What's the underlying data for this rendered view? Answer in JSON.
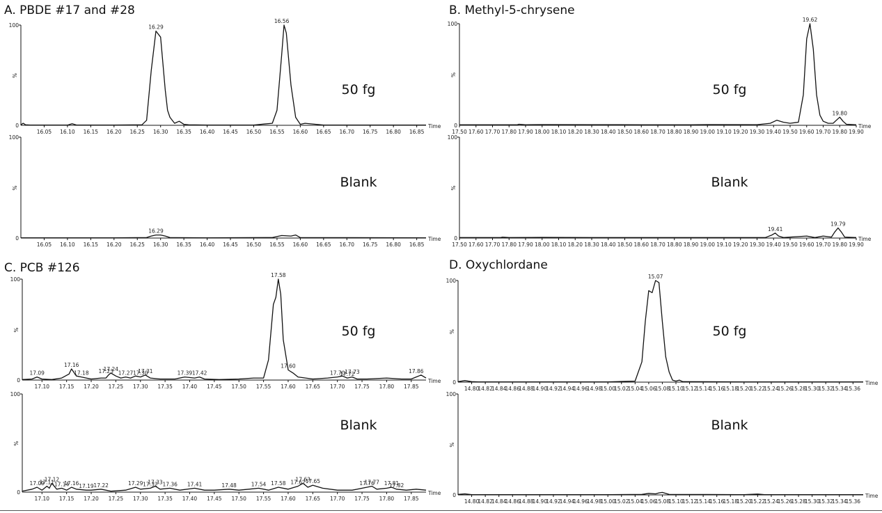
{
  "colors": {
    "trace": "#111111",
    "background": "#ffffff"
  },
  "chart_data": [
    {
      "type": "line",
      "panel_title": "A.  PBDE #17 and #28",
      "xlim": [
        16.0,
        16.87
      ],
      "ylim": [
        0,
        100
      ],
      "y_tick_labels": [
        "100",
        "%",
        "0"
      ],
      "x_tick_values": [
        16.05,
        16.1,
        16.15,
        16.2,
        16.25,
        16.3,
        16.35,
        16.4,
        16.45,
        16.5,
        16.55,
        16.6,
        16.65,
        16.7,
        16.75,
        16.8,
        16.85
      ],
      "x_tick_labels": [
        "16.05",
        "16.10",
        "16.15",
        "16.20",
        "16.25",
        "16.30",
        "16.35",
        "16.40",
        "16.45",
        "16.50",
        "16.55",
        "16.60",
        "16.65",
        "16.70",
        "16.75",
        "16.80",
        "16.85"
      ],
      "x_axis_label": "Time",
      "traces": [
        {
          "condition": "50 fg",
          "x": [
            16.0,
            16.005,
            16.01,
            16.02,
            16.05,
            16.1,
            16.11,
            16.12,
            16.2,
            16.26,
            16.27,
            16.28,
            16.29,
            16.3,
            16.31,
            16.315,
            16.32,
            16.33,
            16.34,
            16.35,
            16.36,
            16.4,
            16.5,
            16.54,
            16.55,
            16.56,
            16.565,
            16.57,
            16.58,
            16.59,
            16.6,
            16.61,
            16.65,
            16.87
          ],
          "y": [
            0.5,
            2,
            0.5,
            0.3,
            0.2,
            0.2,
            1.5,
            0.2,
            0.2,
            0.5,
            5,
            55,
            94,
            88,
            35,
            15,
            8,
            2,
            4,
            1,
            0.5,
            0.3,
            0.3,
            2,
            15,
            70,
            100,
            92,
            40,
            8,
            1,
            2,
            0.3,
            0.3
          ],
          "peak_labels": [
            {
              "x": 16.29,
              "y": 94,
              "text": "16.29"
            },
            {
              "x": 16.56,
              "y": 100,
              "text": "16.56"
            }
          ]
        },
        {
          "condition": "Blank",
          "x": [
            16.0,
            16.2,
            16.27,
            16.28,
            16.29,
            16.3,
            16.31,
            16.32,
            16.4,
            16.54,
            16.56,
            16.58,
            16.59,
            16.6,
            16.87
          ],
          "y": [
            0.3,
            0.3,
            0.5,
            2,
            3,
            3,
            2,
            0.5,
            0.3,
            0.5,
            2.5,
            2,
            3,
            0.5,
            0.3
          ],
          "peak_labels": [
            {
              "x": 16.29,
              "y": 3,
              "text": "16.29"
            }
          ]
        }
      ]
    },
    {
      "type": "line",
      "panel_title": "B.  Methyl-5-chrysene",
      "xlim": [
        17.5,
        19.9
      ],
      "ylim": [
        0,
        100
      ],
      "y_tick_labels": [
        "100",
        "%",
        "0"
      ],
      "x_tick_values": [
        17.5,
        17.6,
        17.7,
        17.8,
        17.9,
        18.0,
        18.1,
        18.2,
        18.3,
        18.4,
        18.5,
        18.6,
        18.7,
        18.8,
        18.9,
        19.0,
        19.1,
        19.2,
        19.3,
        19.4,
        19.5,
        19.6,
        19.7,
        19.8,
        19.9
      ],
      "x_tick_labels": [
        "17.50",
        "17.60",
        "17.70",
        "17.80",
        "17.90",
        "18.00",
        "18.10",
        "18.20",
        "18.30",
        "18.40",
        "18.50",
        "18.60",
        "18.70",
        "18.80",
        "18.90",
        "19.00",
        "19.10",
        "19.20",
        "19.30",
        "19.40",
        "19.50",
        "19.60",
        "19.70",
        "19.80",
        "19.90"
      ],
      "x_axis_label": "Time",
      "traces": [
        {
          "condition": "50 fg",
          "x": [
            17.5,
            17.85,
            17.86,
            17.9,
            18.0,
            18.3,
            18.6,
            18.9,
            19.0,
            19.3,
            19.38,
            19.42,
            19.46,
            19.5,
            19.55,
            19.58,
            19.6,
            19.62,
            19.64,
            19.66,
            19.68,
            19.7,
            19.73,
            19.76,
            19.78,
            19.8,
            19.82,
            19.84,
            19.9
          ],
          "y": [
            0.5,
            0.5,
            1,
            0.5,
            0.7,
            0.6,
            0.5,
            0.5,
            0.7,
            0.6,
            2,
            5,
            3,
            2,
            3,
            30,
            85,
            100,
            75,
            30,
            10,
            4,
            2,
            2,
            5,
            8,
            4,
            1,
            0.5
          ],
          "peak_labels": [
            {
              "x": 19.62,
              "y": 100,
              "text": "19.62"
            },
            {
              "x": 19.8,
              "y": 8,
              "text": "19.80"
            }
          ]
        },
        {
          "condition": "Blank",
          "x": [
            17.5,
            17.75,
            17.76,
            17.8,
            18.0,
            18.3,
            18.6,
            19.0,
            19.35,
            19.39,
            19.41,
            19.43,
            19.46,
            19.5,
            19.6,
            19.65,
            19.7,
            19.75,
            19.77,
            19.79,
            19.81,
            19.83,
            19.9
          ],
          "y": [
            0.5,
            0.5,
            1,
            0.5,
            0.7,
            0.5,
            0.5,
            0.5,
            0.5,
            3,
            5,
            2,
            0.5,
            1,
            2,
            0.5,
            2,
            1,
            6,
            10,
            6,
            1,
            0.5
          ],
          "peak_labels": [
            {
              "x": 19.41,
              "y": 5,
              "text": "19.41"
            },
            {
              "x": 19.79,
              "y": 10,
              "text": "19.79"
            }
          ]
        }
      ]
    },
    {
      "type": "line",
      "panel_title": "C.  PCB #126",
      "xlim": [
        17.06,
        17.88
      ],
      "ylim": [
        0,
        100
      ],
      "y_tick_labels": [
        "100",
        "%",
        "0"
      ],
      "x_tick_values": [
        17.1,
        17.15,
        17.2,
        17.25,
        17.3,
        17.35,
        17.4,
        17.45,
        17.5,
        17.55,
        17.6,
        17.65,
        17.7,
        17.75,
        17.8,
        17.85
      ],
      "x_tick_labels": [
        "17.10",
        "17.15",
        "17.20",
        "17.25",
        "17.30",
        "17.35",
        "17.40",
        "17.45",
        "17.50",
        "17.55",
        "17.60",
        "17.65",
        "17.70",
        "17.75",
        "17.80",
        "17.85"
      ],
      "x_axis_label": "Time",
      "traces": [
        {
          "condition": "50 fg",
          "x": [
            17.06,
            17.08,
            17.09,
            17.1,
            17.12,
            17.14,
            17.155,
            17.16,
            17.17,
            17.18,
            17.19,
            17.2,
            17.22,
            17.23,
            17.235,
            17.24,
            17.25,
            17.26,
            17.27,
            17.28,
            17.29,
            17.3,
            17.31,
            17.32,
            17.34,
            17.37,
            17.39,
            17.41,
            17.42,
            17.43,
            17.46,
            17.5,
            17.53,
            17.55,
            17.56,
            17.57,
            17.575,
            17.58,
            17.585,
            17.59,
            17.6,
            17.61,
            17.62,
            17.65,
            17.68,
            17.7,
            17.71,
            17.72,
            17.73,
            17.74,
            17.76,
            17.8,
            17.83,
            17.85,
            17.86,
            17.87,
            17.88
          ],
          "y": [
            0.5,
            1,
            3,
            1,
            0.5,
            2,
            6,
            11,
            4,
            3,
            2,
            1,
            2,
            2,
            5,
            7,
            4,
            2,
            3,
            2,
            4,
            3,
            5,
            2,
            1,
            1,
            3,
            2,
            3,
            1,
            0.5,
            1,
            2,
            2,
            20,
            75,
            82,
            100,
            85,
            40,
            10,
            7,
            3,
            1,
            2,
            3,
            4,
            2,
            3,
            1,
            1,
            2,
            1,
            1,
            3,
            5,
            2
          ],
          "peak_labels": [
            {
              "x": 17.09,
              "y": 3,
              "text": "17.09"
            },
            {
              "x": 17.16,
              "y": 11,
              "text": "17.16"
            },
            {
              "x": 17.18,
              "y": 3,
              "text": "17.18"
            },
            {
              "x": 17.23,
              "y": 5,
              "text": "17.23"
            },
            {
              "x": 17.24,
              "y": 7,
              "text": "17.24"
            },
            {
              "x": 17.27,
              "y": 3,
              "text": "17.27"
            },
            {
              "x": 17.3,
              "y": 3,
              "text": "17.30"
            },
            {
              "x": 17.31,
              "y": 5,
              "text": "17.31"
            },
            {
              "x": 17.39,
              "y": 3,
              "text": "17.39"
            },
            {
              "x": 17.42,
              "y": 3,
              "text": "17.42"
            },
            {
              "x": 17.58,
              "y": 100,
              "text": "17.58"
            },
            {
              "x": 17.6,
              "y": 10,
              "text": "17.60"
            },
            {
              "x": 17.7,
              "y": 3,
              "text": "17.70"
            },
            {
              "x": 17.72,
              "y": 2,
              "text": "17.72"
            },
            {
              "x": 17.73,
              "y": 4,
              "text": "17.73"
            },
            {
              "x": 17.86,
              "y": 5,
              "text": "17.86"
            }
          ]
        },
        {
          "condition": "Blank",
          "x": [
            17.06,
            17.08,
            17.09,
            17.1,
            17.11,
            17.115,
            17.12,
            17.13,
            17.14,
            17.15,
            17.16,
            17.17,
            17.19,
            17.2,
            17.22,
            17.24,
            17.27,
            17.29,
            17.3,
            17.32,
            17.33,
            17.34,
            17.36,
            17.38,
            17.41,
            17.43,
            17.45,
            17.48,
            17.5,
            17.52,
            17.54,
            17.56,
            17.58,
            17.6,
            17.62,
            17.63,
            17.64,
            17.65,
            17.67,
            17.7,
            17.73,
            17.76,
            17.77,
            17.78,
            17.8,
            17.81,
            17.82,
            17.84,
            17.86,
            17.88
          ],
          "y": [
            1,
            3,
            5,
            2,
            6,
            4,
            9,
            3,
            4,
            2,
            5,
            3,
            2,
            2,
            3,
            1,
            2,
            5,
            3,
            4,
            6,
            3,
            4,
            2,
            4,
            2,
            2,
            3,
            2,
            3,
            4,
            2,
            5,
            3,
            6,
            9,
            5,
            7,
            4,
            2,
            2,
            5,
            6,
            3,
            4,
            5,
            3,
            2,
            3,
            2
          ],
          "peak_labels": [
            {
              "x": 17.09,
              "y": 5,
              "text": "17.09"
            },
            {
              "x": 17.11,
              "y": 6,
              "text": "17.11"
            },
            {
              "x": 17.12,
              "y": 9,
              "text": "17.12"
            },
            {
              "x": 17.14,
              "y": 4,
              "text": "17.14"
            },
            {
              "x": 17.16,
              "y": 5,
              "text": "17.16"
            },
            {
              "x": 17.19,
              "y": 2,
              "text": "17.19"
            },
            {
              "x": 17.22,
              "y": 3,
              "text": "17.22"
            },
            {
              "x": 17.29,
              "y": 5,
              "text": "17.29"
            },
            {
              "x": 17.32,
              "y": 4,
              "text": "17.32"
            },
            {
              "x": 17.33,
              "y": 6,
              "text": "17.33"
            },
            {
              "x": 17.36,
              "y": 4,
              "text": "17.36"
            },
            {
              "x": 17.41,
              "y": 4,
              "text": "17.41"
            },
            {
              "x": 17.48,
              "y": 3,
              "text": "17.48"
            },
            {
              "x": 17.54,
              "y": 4,
              "text": "17.54"
            },
            {
              "x": 17.58,
              "y": 5,
              "text": "17.58"
            },
            {
              "x": 17.62,
              "y": 6,
              "text": "17.62"
            },
            {
              "x": 17.63,
              "y": 9,
              "text": "17.63"
            },
            {
              "x": 17.65,
              "y": 7,
              "text": "17.65"
            },
            {
              "x": 17.76,
              "y": 5,
              "text": "17.76"
            },
            {
              "x": 17.77,
              "y": 6,
              "text": "17.77"
            },
            {
              "x": 17.81,
              "y": 5,
              "text": "17.81"
            },
            {
              "x": 17.82,
              "y": 3,
              "text": "17.82"
            }
          ]
        }
      ]
    },
    {
      "type": "line",
      "panel_title": "D.  Oxychlordane",
      "xlim": [
        14.78,
        15.375
      ],
      "ylim": [
        0,
        100
      ],
      "y_tick_labels": [
        "100",
        "%",
        "0"
      ],
      "x_tick_values": [
        14.8,
        14.82,
        14.84,
        14.86,
        14.88,
        14.9,
        14.92,
        14.94,
        14.96,
        14.98,
        15.0,
        15.02,
        15.04,
        15.06,
        15.08,
        15.1,
        15.12,
        15.14,
        15.16,
        15.18,
        15.2,
        15.22,
        15.24,
        15.26,
        15.28,
        15.3,
        15.32,
        15.34,
        15.36
      ],
      "x_tick_labels": [
        "14.80",
        "14.82",
        "14.84",
        "14.86",
        "14.88",
        "14.90",
        "14.92",
        "14.94",
        "14.96",
        "14.98",
        "15.00",
        "15.02",
        "15.04",
        "15.06",
        "15.08",
        "15.10",
        "15.12",
        "15.14",
        "15.16",
        "15.18",
        "15.20",
        "15.22",
        "15.24",
        "15.26",
        "15.28",
        "15.30",
        "15.32",
        "15.34",
        "15.36"
      ],
      "x_axis_label": "Time",
      "traces": [
        {
          "condition": "50 fg",
          "x": [
            14.78,
            14.79,
            14.8,
            14.81,
            14.9,
            15.0,
            15.04,
            15.05,
            15.055,
            15.06,
            15.065,
            15.07,
            15.075,
            15.08,
            15.085,
            15.09,
            15.095,
            15.1,
            15.105,
            15.11,
            15.2,
            15.375
          ],
          "y": [
            0.5,
            1.5,
            0.5,
            0.3,
            0.3,
            0.3,
            1,
            20,
            60,
            90,
            88,
            100,
            98,
            60,
            25,
            10,
            2,
            1,
            2,
            0.5,
            0.3,
            0.3
          ],
          "peak_labels": [
            {
              "x": 15.07,
              "y": 100,
              "text": "15.07"
            }
          ]
        },
        {
          "condition": "Blank",
          "x": [
            14.78,
            14.79,
            14.8,
            15.0,
            15.05,
            15.06,
            15.07,
            15.075,
            15.08,
            15.09,
            15.2,
            15.22,
            15.23,
            15.375
          ],
          "y": [
            0.5,
            1,
            0.3,
            0.3,
            0.5,
            1.5,
            1,
            2,
            2.5,
            0.5,
            0.3,
            0.8,
            0.3,
            0.3
          ],
          "peak_labels": []
        }
      ]
    }
  ]
}
